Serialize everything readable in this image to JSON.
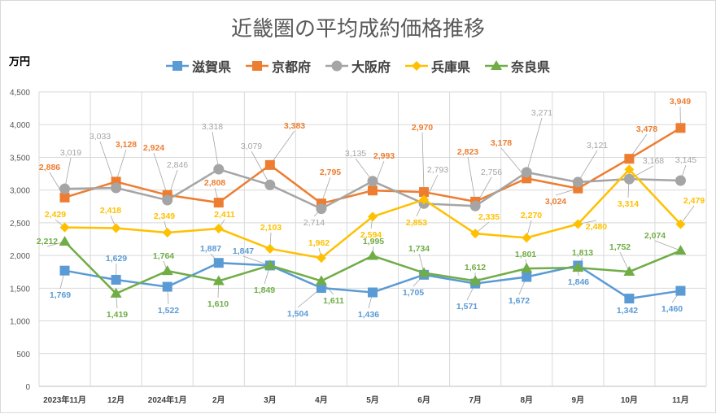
{
  "chart_data": {
    "type": "line",
    "title": "近畿圏の平均成約価格推移",
    "ylabel": "万円",
    "categories": [
      "2023年11月",
      "12月",
      "2024年1月",
      "2月",
      "3月",
      "4月",
      "5月",
      "6月",
      "7月",
      "8月",
      "9月",
      "10月",
      "11月"
    ],
    "ylim": [
      0,
      4500
    ],
    "yticks": [
      "0",
      "500",
      "1,000",
      "1,500",
      "2,000",
      "2,500",
      "3,000",
      "3,500",
      "4,000",
      "4,500"
    ],
    "grid": true,
    "legend": "top",
    "series": [
      {
        "name": "滋賀県",
        "color": "#5b9bd5",
        "marker": "square",
        "values": [
          1769,
          1629,
          1522,
          1887,
          1847,
          1504,
          1436,
          1705,
          1571,
          1672,
          1846,
          1342,
          1460
        ]
      },
      {
        "name": "京都府",
        "color": "#ed7d31",
        "marker": "square",
        "values": [
          2886,
          3128,
          2924,
          2808,
          3383,
          2795,
          2993,
          2970,
          2823,
          3178,
          3024,
          3478,
          3949
        ]
      },
      {
        "name": "大阪府",
        "color": "#a5a5a5",
        "marker": "circle",
        "values": [
          3019,
          3033,
          2846,
          3318,
          3079,
          2714,
          3135,
          2793,
          2756,
          3271,
          3121,
          3168,
          3145
        ]
      },
      {
        "name": "兵庫県",
        "color": "#ffc000",
        "marker": "diamond",
        "values": [
          2429,
          2418,
          2349,
          2411,
          2103,
          1962,
          2594,
          2853,
          2335,
          2270,
          2480,
          3314,
          2479
        ]
      },
      {
        "name": "奈良県",
        "color": "#70ad47",
        "marker": "triangle",
        "values": [
          2212,
          1419,
          1764,
          1610,
          1849,
          1611,
          1995,
          1734,
          1612,
          1801,
          1813,
          1752,
          2074
        ]
      }
    ]
  }
}
